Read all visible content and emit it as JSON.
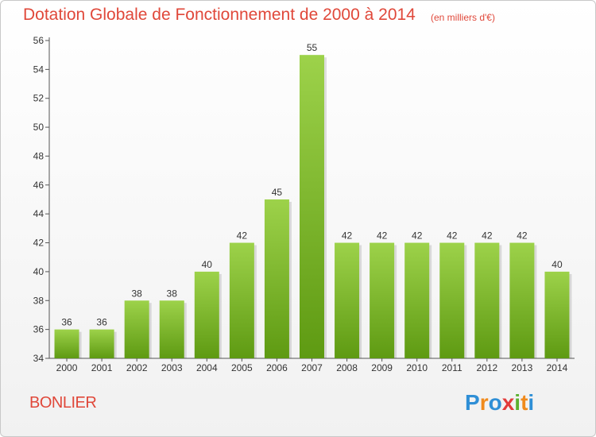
{
  "header": {
    "title": "Dotation Globale de Fonctionnement de 2000 à 2014",
    "subtitle": "(en milliers d'€)"
  },
  "footer": {
    "commune": "BONLIER",
    "brand": "Proxiti"
  },
  "colors": {
    "title": "#e0483a",
    "bar_top": "#9dd24a",
    "bar_bottom": "#5e9a12",
    "axis": "#555555"
  },
  "chart_data": {
    "type": "bar",
    "title": "Dotation Globale de Fonctionnement de 2000 à 2014",
    "unit_label": "(en milliers d'€)",
    "categories": [
      "2000",
      "2001",
      "2002",
      "2003",
      "2004",
      "2005",
      "2006",
      "2007",
      "2008",
      "2009",
      "2010",
      "2011",
      "2012",
      "2013",
      "2014"
    ],
    "values": [
      36,
      36,
      38,
      38,
      40,
      42,
      45,
      55,
      42,
      42,
      42,
      42,
      42,
      42,
      40
    ],
    "ylim": [
      34,
      56
    ],
    "yticks": [
      34,
      36,
      38,
      40,
      42,
      44,
      46,
      48,
      50,
      52,
      54,
      56
    ],
    "xlabel": "",
    "ylabel": "",
    "grid": false
  }
}
